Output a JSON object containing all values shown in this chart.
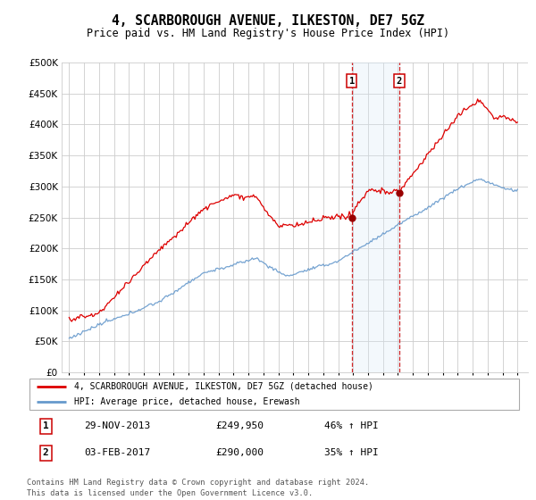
{
  "title": "4, SCARBOROUGH AVENUE, ILKESTON, DE7 5GZ",
  "subtitle": "Price paid vs. HM Land Registry's House Price Index (HPI)",
  "ytick_vals": [
    0,
    50000,
    100000,
    150000,
    200000,
    250000,
    300000,
    350000,
    400000,
    450000,
    500000
  ],
  "ylim": [
    0,
    500000
  ],
  "sale1": {
    "date_label": "29-NOV-2013",
    "year": 2013.91,
    "price": 249950,
    "label": "46% ↑ HPI",
    "num": "1"
  },
  "sale2": {
    "date_label": "03-FEB-2017",
    "year": 2017.09,
    "price": 290000,
    "label": "35% ↑ HPI",
    "num": "2"
  },
  "legend_house": "4, SCARBOROUGH AVENUE, ILKESTON, DE7 5GZ (detached house)",
  "legend_hpi": "HPI: Average price, detached house, Erewash",
  "footer": "Contains HM Land Registry data © Crown copyright and database right 2024.\nThis data is licensed under the Open Government Licence v3.0.",
  "house_color": "#dd0000",
  "hpi_color": "#6699cc",
  "shade_color": "#daeaf7",
  "vline_color": "#cc0000",
  "background": "#ffffff",
  "grid_color": "#cccccc"
}
